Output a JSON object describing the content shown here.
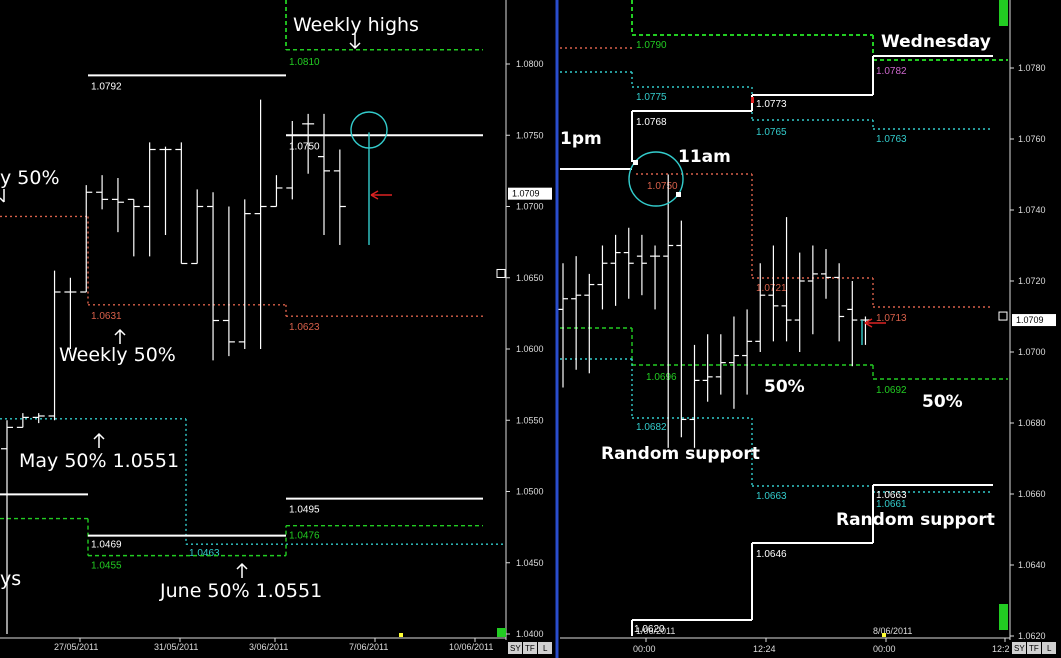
{
  "colors": {
    "background": "#000000",
    "white": "#ffffff",
    "green": "#22cc22",
    "cyan": "#33cccc",
    "orange": "#d8604a",
    "magenta": "#cc66cc",
    "divider": "#2a4dcc",
    "red": "#dd2222"
  },
  "chart_data": [
    {
      "type": "bar",
      "title": "",
      "y_ticks": [
        "1.0800",
        "1.0750",
        "1.0700",
        "1.0650",
        "1.0600",
        "1.0550",
        "1.0500",
        "1.0450",
        "1.0400"
      ],
      "ylim": [
        1.04,
        1.0835
      ],
      "x_ticks": [
        "27/05/2011",
        "31/05/2011",
        "3/06/2011",
        "7/06/2011",
        "10/06/2011"
      ],
      "current_price": "1.0709",
      "bars": [
        {
          "x": 1,
          "o": 1.053,
          "h": 1.055,
          "l": 1.04,
          "c": 1.0545
        },
        {
          "x": 2,
          "o": 1.0545,
          "h": 1.0555,
          "l": 1.0545,
          "c": 1.0552
        },
        {
          "x": 3,
          "o": 1.0552,
          "h": 1.0555,
          "l": 1.0548,
          "c": 1.0553
        },
        {
          "x": 4,
          "o": 1.0553,
          "h": 1.0655,
          "l": 1.055,
          "c": 1.064
        },
        {
          "x": 5,
          "o": 1.064,
          "h": 1.065,
          "l": 1.06,
          "c": 1.064
        },
        {
          "x": 6,
          "o": 1.064,
          "h": 1.0715,
          "l": 1.064,
          "c": 1.071
        },
        {
          "x": 7,
          "o": 1.071,
          "h": 1.0722,
          "l": 1.0698,
          "c": 1.0705
        },
        {
          "x": 8,
          "o": 1.0705,
          "h": 1.072,
          "l": 1.0682,
          "c": 1.0703
        },
        {
          "x": 9,
          "o": 1.0705,
          "h": 1.0705,
          "l": 1.0665,
          "c": 1.07
        },
        {
          "x": 10,
          "o": 1.07,
          "h": 1.0745,
          "l": 1.0665,
          "c": 1.074
        },
        {
          "x": 11,
          "o": 1.074,
          "h": 1.0742,
          "l": 1.068,
          "c": 1.074
        },
        {
          "x": 12,
          "o": 1.074,
          "h": 1.0745,
          "l": 1.066,
          "c": 1.066
        },
        {
          "x": 13,
          "o": 1.066,
          "h": 1.0712,
          "l": 1.066,
          "c": 1.07
        },
        {
          "x": 14,
          "o": 1.07,
          "h": 1.071,
          "l": 1.0592,
          "c": 1.062
        },
        {
          "x": 15,
          "o": 1.062,
          "h": 1.07,
          "l": 1.0595,
          "c": 1.0605
        },
        {
          "x": 16,
          "o": 1.0605,
          "h": 1.0705,
          "l": 1.06,
          "c": 1.0695
        },
        {
          "x": 17,
          "o": 1.0695,
          "h": 1.0775,
          "l": 1.06,
          "c": 1.07
        },
        {
          "x": 18,
          "o": 1.07,
          "h": 1.0722,
          "l": 1.07,
          "c": 1.0713
        },
        {
          "x": 19,
          "o": 1.0713,
          "h": 1.076,
          "l": 1.0705,
          "c": 1.075
        },
        {
          "x": 20,
          "o": 1.0758,
          "h": 1.0765,
          "l": 1.0723,
          "c": 1.0758
        },
        {
          "x": 21,
          "o": 1.0735,
          "h": 1.0765,
          "l": 1.068,
          "c": 1.0725
        },
        {
          "x": 22,
          "o": 1.0725,
          "h": 1.074,
          "l": 1.0673,
          "c": 1.07
        }
      ],
      "levels": [
        {
          "label": "1.0792",
          "value": 1.0792,
          "color": "white",
          "style": "solid"
        },
        {
          "label": "1.0810",
          "value": 1.081,
          "color": "green",
          "style": "dashed"
        },
        {
          "label": "1.0750",
          "value": 1.075,
          "color": "white",
          "style": "solid"
        },
        {
          "label": "1.0631",
          "value": 1.0631,
          "color": "orange",
          "style": "dotted"
        },
        {
          "label": "1.0623",
          "value": 1.0623,
          "color": "orange",
          "style": "dotted"
        },
        {
          "label": "1.0495",
          "value": 1.0495,
          "color": "white",
          "style": "solid"
        },
        {
          "label": "1.0476",
          "value": 1.0476,
          "color": "green",
          "style": "dashed"
        },
        {
          "label": "1.0469",
          "value": 1.0469,
          "color": "white",
          "style": "solid"
        },
        {
          "label": "1.0455",
          "value": 1.0455,
          "color": "green",
          "style": "dashed"
        },
        {
          "label": "1.0463",
          "value": 1.0463,
          "color": "cyan",
          "style": "dotted"
        }
      ],
      "annotations": [
        "Weekly highs",
        "y 50%",
        "Weekly 50%",
        "May 50% 1.0551",
        "June 50% 1.0551",
        "ys"
      ]
    },
    {
      "type": "bar",
      "title": "",
      "y_ticks": [
        "1.0780",
        "1.0760",
        "1.0740",
        "1.0720",
        "1.0700",
        "1.0680",
        "1.0660",
        "1.0640",
        "1.0620"
      ],
      "ylim": [
        1.062,
        1.0796
      ],
      "x_ticks": [
        "00:00",
        "12:24",
        "00:00",
        "12:2"
      ],
      "x_date_labels": [
        "1/06/2011",
        "8/06/2011"
      ],
      "current_price": "1.0709",
      "bars": [
        {
          "x": 1,
          "o": 1.0712,
          "h": 1.0725,
          "l": 1.069,
          "c": 1.0715
        },
        {
          "x": 2,
          "o": 1.0715,
          "h": 1.0727,
          "l": 1.0695,
          "c": 1.0716
        },
        {
          "x": 3,
          "o": 1.0716,
          "h": 1.0722,
          "l": 1.0694,
          "c": 1.0719
        },
        {
          "x": 4,
          "o": 1.0719,
          "h": 1.073,
          "l": 1.0712,
          "c": 1.0725
        },
        {
          "x": 5,
          "o": 1.0725,
          "h": 1.0733,
          "l": 1.0713,
          "c": 1.0728
        },
        {
          "x": 6,
          "o": 1.0728,
          "h": 1.0735,
          "l": 1.0715,
          "c": 1.0725
        },
        {
          "x": 7,
          "o": 1.0727,
          "h": 1.0733,
          "l": 1.0716,
          "c": 1.0725
        },
        {
          "x": 8,
          "o": 1.0727,
          "h": 1.073,
          "l": 1.0712,
          "c": 1.0727
        },
        {
          "x": 9,
          "o": 1.0727,
          "h": 1.075,
          "l": 1.0673,
          "c": 1.073
        },
        {
          "x": 10,
          "o": 1.073,
          "h": 1.0737,
          "l": 1.0676,
          "c": 1.0681
        },
        {
          "x": 11,
          "o": 1.0681,
          "h": 1.0702,
          "l": 1.0673,
          "c": 1.0692
        },
        {
          "x": 12,
          "o": 1.0692,
          "h": 1.0705,
          "l": 1.0686,
          "c": 1.0693
        },
        {
          "x": 13,
          "o": 1.0693,
          "h": 1.0705,
          "l": 1.0688,
          "c": 1.0697
        },
        {
          "x": 14,
          "o": 1.0697,
          "h": 1.071,
          "l": 1.0684,
          "c": 1.0699
        },
        {
          "x": 15,
          "o": 1.0699,
          "h": 1.0712,
          "l": 1.0688,
          "c": 1.0703
        },
        {
          "x": 16,
          "o": 1.0703,
          "h": 1.0725,
          "l": 1.07,
          "c": 1.0716
        },
        {
          "x": 17,
          "o": 1.0716,
          "h": 1.073,
          "l": 1.0703,
          "c": 1.0713
        },
        {
          "x": 18,
          "o": 1.0713,
          "h": 1.0738,
          "l": 1.0703,
          "c": 1.0709
        },
        {
          "x": 19,
          "o": 1.0709,
          "h": 1.0728,
          "l": 1.07,
          "c": 1.072
        },
        {
          "x": 20,
          "o": 1.072,
          "h": 1.073,
          "l": 1.0705,
          "c": 1.0722
        },
        {
          "x": 21,
          "o": 1.0722,
          "h": 1.0729,
          "l": 1.0715,
          "c": 1.0721
        },
        {
          "x": 22,
          "o": 1.0721,
          "h": 1.0725,
          "l": 1.0703,
          "c": 1.071
        },
        {
          "x": 23,
          "o": 1.0712,
          "h": 1.072,
          "l": 1.0696,
          "c": 1.0709
        },
        {
          "x": 24,
          "o": 1.0709,
          "h": 1.071,
          "l": 1.0702,
          "c": 1.0709
        }
      ],
      "level_labels": [
        "1.0790",
        "1.0775",
        "1.0768",
        "1.0750",
        "1.0773",
        "1.0765",
        "1.0763",
        "1.0782",
        "1.0721",
        "1.0713",
        "1.0696",
        "1.0692",
        "1.0682",
        "1.0663",
        "1.0663",
        "1.0661",
        "1.0646",
        "1.0620"
      ],
      "annotations": [
        "Wednesday",
        "1pm",
        "11am",
        "50%",
        "50%",
        "Random support",
        "Random support"
      ]
    }
  ],
  "toolbar": {
    "left_buttons": [
      "SY",
      "TF",
      "L"
    ],
    "right_buttons": [
      "SY",
      "TF",
      "L"
    ]
  }
}
